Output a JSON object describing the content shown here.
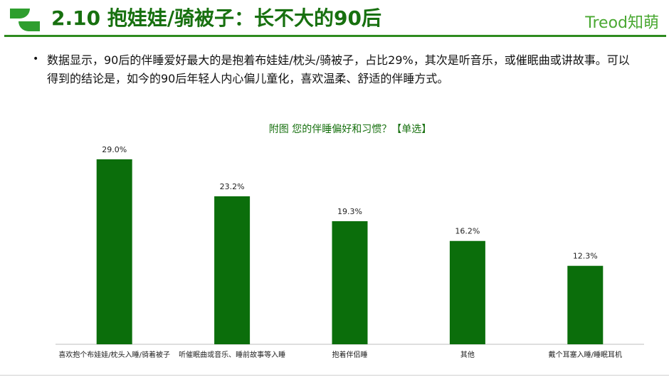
{
  "header": {
    "title": "2.10  抱娃娃/骑被子：长不大的90后",
    "brand": "Treod知萌"
  },
  "body": {
    "bullet": "•",
    "text": "数据显示，90后的伴睡爱好最大的是抱着布娃娃/枕头/骑被子，占比29%，其次是听音乐，或催眠曲或讲故事。可以得到的结论是，如今的90后年轻人内心偏儿童化，喜欢温柔、舒适的伴睡方式。"
  },
  "colors": {
    "accent": "#17700f",
    "bar": "#0b6e0b",
    "logo": "#2e9e2e"
  },
  "chart_data": {
    "type": "bar",
    "title": "附图  您的伴睡偏好和习惯？【单选】",
    "categories": [
      "喜欢抱个布娃娃/枕头入睡/骑着被子",
      "听催眠曲或音乐、睡前故事等入睡",
      "抱着伴侣睡",
      "其他",
      "戴个耳塞入睡/睡眠耳机"
    ],
    "values": [
      29.0,
      23.2,
      19.3,
      16.2,
      12.3
    ],
    "value_labels": [
      "29.0%",
      "23.2%",
      "19.3%",
      "16.2%",
      "12.3%"
    ],
    "ylim": [
      0,
      30
    ],
    "xlabel": "",
    "ylabel": "",
    "grid": false,
    "legend": "none"
  }
}
